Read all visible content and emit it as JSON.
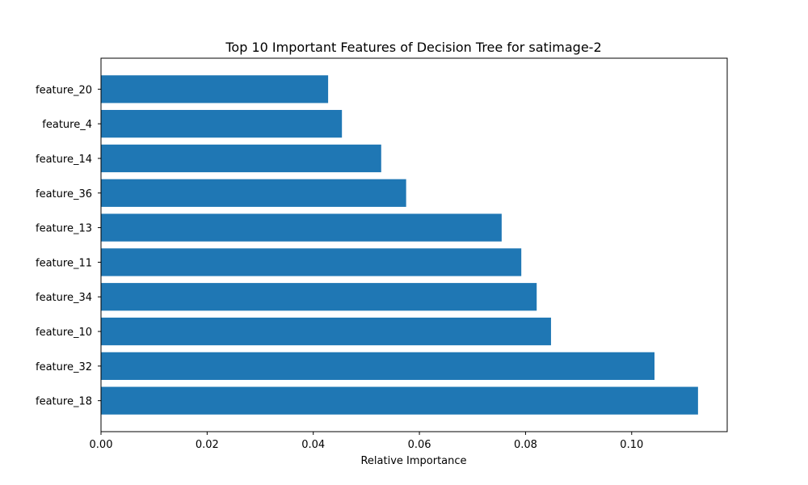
{
  "chart_data": {
    "type": "bar",
    "orientation": "horizontal",
    "title": "Top 10 Important Features of Decision Tree for satimage-2",
    "xlabel": "Relative Importance",
    "ylabel": "",
    "categories": [
      "feature_20",
      "feature_4",
      "feature_14",
      "feature_36",
      "feature_13",
      "feature_11",
      "feature_34",
      "feature_10",
      "feature_32",
      "feature_18"
    ],
    "values": [
      0.0428,
      0.0454,
      0.0528,
      0.0575,
      0.0755,
      0.0792,
      0.0821,
      0.0848,
      0.1043,
      0.1125
    ],
    "xlim": [
      0,
      0.118
    ],
    "xticks": [
      0.0,
      0.02,
      0.04,
      0.06,
      0.08,
      0.1
    ],
    "xtick_labels": [
      "0.00",
      "0.02",
      "0.04",
      "0.06",
      "0.08",
      "0.10"
    ],
    "bar_color": "#1f77b4",
    "grid": false,
    "legend": false
  }
}
